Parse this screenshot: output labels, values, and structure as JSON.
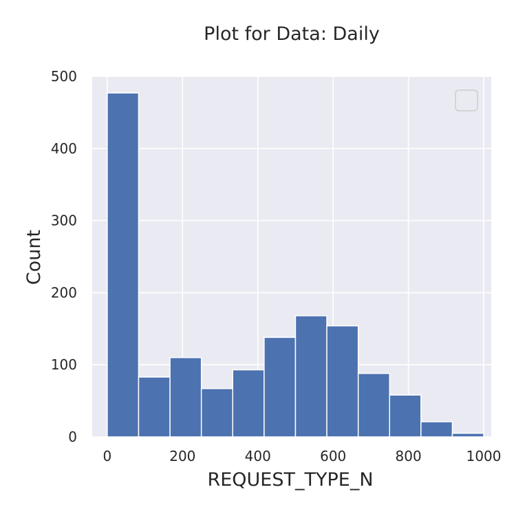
{
  "chart_data": {
    "type": "bar",
    "title": "Plot for Data: Daily",
    "xlabel": "REQUEST_TYPE_N",
    "ylabel": "Count",
    "xlim": [
      -40,
      1020
    ],
    "ylim": [
      0,
      500
    ],
    "x_ticks": [
      0,
      200,
      400,
      600,
      800,
      1000
    ],
    "y_ticks": [
      0,
      100,
      200,
      300,
      400,
      500
    ],
    "grid": true,
    "legend": "top-right, empty",
    "bar_color": "#4c72b0",
    "background_color": "#eaeaf2",
    "bins": [
      {
        "start": 0,
        "end": 83.3,
        "count": 477
      },
      {
        "start": 83.3,
        "end": 166.7,
        "count": 83
      },
      {
        "start": 166.7,
        "end": 250,
        "count": 110
      },
      {
        "start": 250,
        "end": 333.3,
        "count": 67
      },
      {
        "start": 333.3,
        "end": 416.7,
        "count": 93
      },
      {
        "start": 416.7,
        "end": 500,
        "count": 138
      },
      {
        "start": 500,
        "end": 583.3,
        "count": 168
      },
      {
        "start": 583.3,
        "end": 666.7,
        "count": 154
      },
      {
        "start": 666.7,
        "end": 750,
        "count": 88
      },
      {
        "start": 750,
        "end": 833.3,
        "count": 58
      },
      {
        "start": 833.3,
        "end": 916.7,
        "count": 21
      },
      {
        "start": 916.7,
        "end": 1000,
        "count": 5
      }
    ]
  }
}
